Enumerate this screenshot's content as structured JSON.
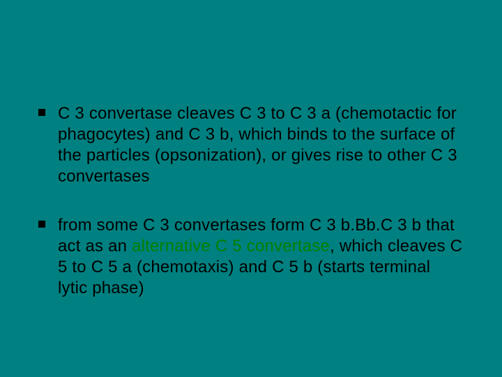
{
  "slide": {
    "background_color": "#008080",
    "text_color": "#000000",
    "highlight_color": "#008000",
    "bullet_marker_color": "#000000",
    "font_family": "Arial",
    "font_size_pt": 18,
    "bullets": [
      {
        "segments": [
          {
            "text": "C 3 convertase cleaves C 3 to C 3 a (chemotactic for phagocytes) and C 3 b, which binds to the surface of the particles (opsonization), or gives rise to other C 3 convertases",
            "highlight": false
          }
        ]
      },
      {
        "segments": [
          {
            "text": "from some C 3 convertases form C 3 b.Bb.C 3 b that act as an ",
            "highlight": false
          },
          {
            "text": "alternative C 5 convertase",
            "highlight": true
          },
          {
            "text": ", which cleaves C 5 to C 5 a (chemotaxis) and C 5 b (starts terminal lytic phase)",
            "highlight": false
          }
        ]
      }
    ]
  }
}
